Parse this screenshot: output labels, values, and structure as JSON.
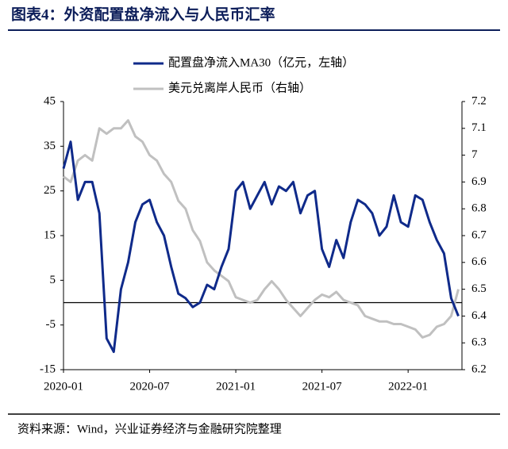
{
  "chart_data": {
    "type": "line",
    "title": "图表4：外资配置盘净流入与人民币汇率",
    "source": "资料来源：Wind，兴业证券经济与金融研究院整理",
    "x": [
      "2020-01",
      "2020-01",
      "2020-02",
      "2020-02",
      "2020-03",
      "2020-03",
      "2020-04",
      "2020-04",
      "2020-05",
      "2020-05",
      "2020-06",
      "2020-06",
      "2020-07",
      "2020-07",
      "2020-08",
      "2020-08",
      "2020-09",
      "2020-09",
      "2020-10",
      "2020-10",
      "2020-11",
      "2020-11",
      "2020-12",
      "2020-12",
      "2021-01",
      "2021-01",
      "2021-02",
      "2021-02",
      "2021-03",
      "2021-03",
      "2021-04",
      "2021-04",
      "2021-05",
      "2021-05",
      "2021-06",
      "2021-06",
      "2021-07",
      "2021-07",
      "2021-08",
      "2021-08",
      "2021-09",
      "2021-09",
      "2021-10",
      "2021-10",
      "2021-11",
      "2021-11",
      "2021-12",
      "2021-12",
      "2022-01",
      "2022-01",
      "2022-02",
      "2022-02",
      "2022-03",
      "2022-03",
      "2022-04",
      "2022-04"
    ],
    "xticks": [
      "2020-01",
      "2020-07",
      "2021-01",
      "2021-07",
      "2022-01"
    ],
    "series": [
      {
        "name": "配置盘净流入MA30（亿元，左轴）",
        "color": "#0f2a8a",
        "axis": "y",
        "values": [
          30,
          36,
          23,
          27,
          27,
          20,
          -8,
          -11,
          3,
          9,
          18,
          22,
          23,
          18,
          15,
          8,
          2,
          1,
          -1,
          0,
          4,
          3,
          8,
          12,
          25,
          27,
          21,
          24,
          27,
          22,
          26,
          25,
          27,
          20,
          24,
          25,
          12,
          8,
          14,
          10,
          18,
          23,
          22,
          20,
          15,
          17,
          24,
          18,
          17,
          24,
          23,
          18,
          14,
          11,
          1,
          -3
        ]
      },
      {
        "name": "美元兑离岸人民币（右轴）",
        "color": "#c0c0c0",
        "axis": "y2",
        "values": [
          6.92,
          6.9,
          6.98,
          7.0,
          6.98,
          7.1,
          7.08,
          7.1,
          7.1,
          7.13,
          7.07,
          7.05,
          7.0,
          6.98,
          6.93,
          6.9,
          6.83,
          6.8,
          6.72,
          6.68,
          6.6,
          6.57,
          6.55,
          6.53,
          6.47,
          6.46,
          6.45,
          6.46,
          6.5,
          6.53,
          6.5,
          6.46,
          6.43,
          6.4,
          6.43,
          6.46,
          6.48,
          6.47,
          6.49,
          6.46,
          6.45,
          6.44,
          6.4,
          6.39,
          6.38,
          6.38,
          6.37,
          6.37,
          6.36,
          6.35,
          6.32,
          6.33,
          6.36,
          6.37,
          6.4,
          6.5
        ]
      }
    ],
    "ylim": [
      -15,
      45
    ],
    "yticks": [
      -15,
      -5,
      5,
      15,
      25,
      35,
      45
    ],
    "y2lim": [
      6.2,
      7.2
    ],
    "y2ticks": [
      6.2,
      6.3,
      6.4,
      6.5,
      6.6,
      6.7,
      6.8,
      6.9,
      7,
      7.1,
      7.2
    ],
    "legend": "top"
  }
}
